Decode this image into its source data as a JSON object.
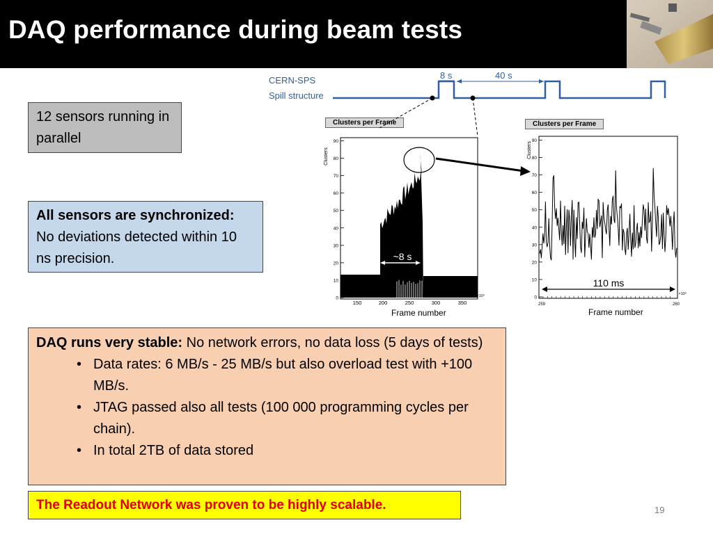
{
  "title": "DAQ performance during beam tests",
  "page_number": "19",
  "boxes": {
    "sensors": "12 sensors running in parallel",
    "sync_bold": "All sensors are synchronized:",
    "sync_text": "No deviations detected within 10 ns precision.",
    "daq_bold": "DAQ runs very stable:",
    "daq_text": " No network errors, no data loss (5 days of tests)",
    "bullets": [
      "Data rates: 6 MB/s - 25 MB/s but also overload test with +100 MB/s.",
      "JTAG passed also all tests (100 000 programming cycles per chain).",
      "In total 2TB of data stored"
    ],
    "conclusion": "The Readout Network was proven to be highly scalable."
  },
  "spill": {
    "label_line1": "CERN-SPS",
    "label_line2": "Spill structure",
    "on_label": "8 s",
    "gap_label": "40 s"
  },
  "plots": {
    "left_title": "Clusters per Frame",
    "right_title": "Clusters per Frame",
    "left_xlabel": "Frame number",
    "right_xlabel": "Frame number",
    "y_axis_label": "Clusters",
    "left_annotation": "~8 s",
    "right_annotation": "110 ms",
    "left_x_ticks": [
      "150",
      "200",
      "250",
      "300",
      "350"
    ],
    "left_x_exp": "×10³",
    "right_x_ticks": [
      "259",
      "260"
    ],
    "right_x_exp": "×10³",
    "y_ticks": [
      "0",
      "10",
      "20",
      "30",
      "40",
      "50",
      "60",
      "70",
      "80",
      "90"
    ]
  },
  "colors": {
    "title_bg": "#000000",
    "sensors_box": "#bdbdbd",
    "sync_box": "#c5d7ea",
    "daq_box": "#f9cfb1",
    "conclusion_box": "#ffff00",
    "conclusion_text": "#e00000",
    "spill_line": "#2f5f9f"
  }
}
